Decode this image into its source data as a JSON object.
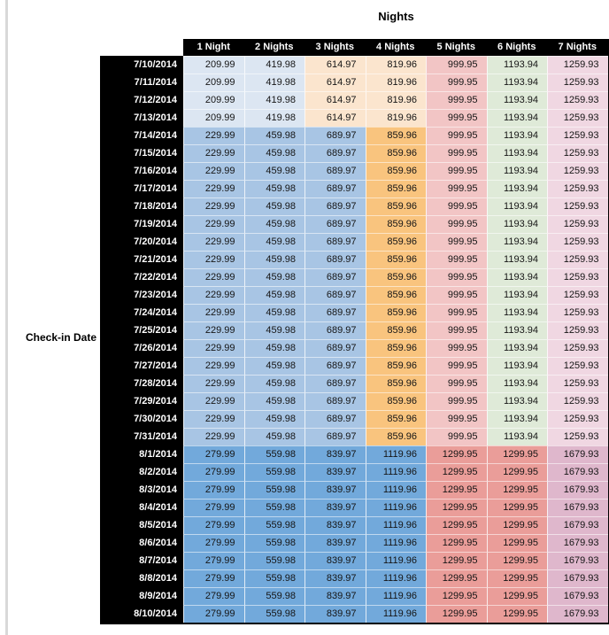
{
  "page": {
    "title": "Nights",
    "row_axis_label": "Check-in Date"
  },
  "palette": {
    "pale_blue": "#DCE6F2",
    "medium_blue": "#A8C5E4",
    "dark_blue": "#72A9DB",
    "pale_tan": "#FBE5CE",
    "orange": "#F9C47E",
    "rose": "#F2C5C5",
    "pale_green": "#DFEAD8",
    "pale_pink": "#F0D7E2",
    "salmon": "#EA9D99",
    "mauve": "#DFB7CC",
    "header_bg": "#000000",
    "header_text": "#FFFFFF",
    "gutter_gray": "#D9D9D9"
  },
  "chart_data": {
    "type": "table",
    "title": "Nights",
    "row_axis_label": "Check-in Date",
    "columns": [
      "1 Night",
      "2 Nights",
      "3 Nights",
      "4 Nights",
      "5 Nights",
      "6 Nights",
      "7 Nights"
    ],
    "band_colors": {
      "early": [
        "#DCE6F2",
        "#DCE6F2",
        "#FBE5CE",
        "#FBE5CE",
        "#F2C5C5",
        "#DFEAD8",
        "#F0D7E2"
      ],
      "mid": [
        "#A8C5E4",
        "#A8C5E4",
        "#A8C5E4",
        "#F9C47E",
        "#F2C5C5",
        "#DFEAD8",
        "#F0D7E2"
      ],
      "peak": [
        "#72A9DB",
        "#72A9DB",
        "#72A9DB",
        "#72A9DB",
        "#EA9D99",
        "#EA9D99",
        "#DFB7CC"
      ]
    },
    "rows": [
      {
        "date": "7/10/2014",
        "band": "early",
        "values": [
          209.99,
          419.98,
          614.97,
          819.96,
          999.95,
          1193.94,
          1259.93
        ]
      },
      {
        "date": "7/11/2014",
        "band": "early",
        "values": [
          209.99,
          419.98,
          614.97,
          819.96,
          999.95,
          1193.94,
          1259.93
        ]
      },
      {
        "date": "7/12/2014",
        "band": "early",
        "values": [
          209.99,
          419.98,
          614.97,
          819.96,
          999.95,
          1193.94,
          1259.93
        ]
      },
      {
        "date": "7/13/2014",
        "band": "early",
        "values": [
          209.99,
          419.98,
          614.97,
          819.96,
          999.95,
          1193.94,
          1259.93
        ]
      },
      {
        "date": "7/14/2014",
        "band": "mid",
        "values": [
          229.99,
          459.98,
          689.97,
          859.96,
          999.95,
          1193.94,
          1259.93
        ]
      },
      {
        "date": "7/15/2014",
        "band": "mid",
        "values": [
          229.99,
          459.98,
          689.97,
          859.96,
          999.95,
          1193.94,
          1259.93
        ]
      },
      {
        "date": "7/16/2014",
        "band": "mid",
        "values": [
          229.99,
          459.98,
          689.97,
          859.96,
          999.95,
          1193.94,
          1259.93
        ]
      },
      {
        "date": "7/17/2014",
        "band": "mid",
        "values": [
          229.99,
          459.98,
          689.97,
          859.96,
          999.95,
          1193.94,
          1259.93
        ]
      },
      {
        "date": "7/18/2014",
        "band": "mid",
        "values": [
          229.99,
          459.98,
          689.97,
          859.96,
          999.95,
          1193.94,
          1259.93
        ]
      },
      {
        "date": "7/19/2014",
        "band": "mid",
        "values": [
          229.99,
          459.98,
          689.97,
          859.96,
          999.95,
          1193.94,
          1259.93
        ]
      },
      {
        "date": "7/20/2014",
        "band": "mid",
        "values": [
          229.99,
          459.98,
          689.97,
          859.96,
          999.95,
          1193.94,
          1259.93
        ]
      },
      {
        "date": "7/21/2014",
        "band": "mid",
        "values": [
          229.99,
          459.98,
          689.97,
          859.96,
          999.95,
          1193.94,
          1259.93
        ]
      },
      {
        "date": "7/22/2014",
        "band": "mid",
        "values": [
          229.99,
          459.98,
          689.97,
          859.96,
          999.95,
          1193.94,
          1259.93
        ]
      },
      {
        "date": "7/23/2014",
        "band": "mid",
        "values": [
          229.99,
          459.98,
          689.97,
          859.96,
          999.95,
          1193.94,
          1259.93
        ]
      },
      {
        "date": "7/24/2014",
        "band": "mid",
        "values": [
          229.99,
          459.98,
          689.97,
          859.96,
          999.95,
          1193.94,
          1259.93
        ]
      },
      {
        "date": "7/25/2014",
        "band": "mid",
        "values": [
          229.99,
          459.98,
          689.97,
          859.96,
          999.95,
          1193.94,
          1259.93
        ]
      },
      {
        "date": "7/26/2014",
        "band": "mid",
        "values": [
          229.99,
          459.98,
          689.97,
          859.96,
          999.95,
          1193.94,
          1259.93
        ]
      },
      {
        "date": "7/27/2014",
        "band": "mid",
        "values": [
          229.99,
          459.98,
          689.97,
          859.96,
          999.95,
          1193.94,
          1259.93
        ]
      },
      {
        "date": "7/28/2014",
        "band": "mid",
        "values": [
          229.99,
          459.98,
          689.97,
          859.96,
          999.95,
          1193.94,
          1259.93
        ]
      },
      {
        "date": "7/29/2014",
        "band": "mid",
        "values": [
          229.99,
          459.98,
          689.97,
          859.96,
          999.95,
          1193.94,
          1259.93
        ]
      },
      {
        "date": "7/30/2014",
        "band": "mid",
        "values": [
          229.99,
          459.98,
          689.97,
          859.96,
          999.95,
          1193.94,
          1259.93
        ]
      },
      {
        "date": "7/31/2014",
        "band": "mid",
        "values": [
          229.99,
          459.98,
          689.97,
          859.96,
          999.95,
          1193.94,
          1259.93
        ]
      },
      {
        "date": "8/1/2014",
        "band": "peak",
        "values": [
          279.99,
          559.98,
          839.97,
          1119.96,
          1299.95,
          1299.95,
          1679.93
        ]
      },
      {
        "date": "8/2/2014",
        "band": "peak",
        "values": [
          279.99,
          559.98,
          839.97,
          1119.96,
          1299.95,
          1299.95,
          1679.93
        ]
      },
      {
        "date": "8/3/2014",
        "band": "peak",
        "values": [
          279.99,
          559.98,
          839.97,
          1119.96,
          1299.95,
          1299.95,
          1679.93
        ]
      },
      {
        "date": "8/4/2014",
        "band": "peak",
        "values": [
          279.99,
          559.98,
          839.97,
          1119.96,
          1299.95,
          1299.95,
          1679.93
        ]
      },
      {
        "date": "8/5/2014",
        "band": "peak",
        "values": [
          279.99,
          559.98,
          839.97,
          1119.96,
          1299.95,
          1299.95,
          1679.93
        ]
      },
      {
        "date": "8/6/2014",
        "band": "peak",
        "values": [
          279.99,
          559.98,
          839.97,
          1119.96,
          1299.95,
          1299.95,
          1679.93
        ]
      },
      {
        "date": "8/7/2014",
        "band": "peak",
        "values": [
          279.99,
          559.98,
          839.97,
          1119.96,
          1299.95,
          1299.95,
          1679.93
        ]
      },
      {
        "date": "8/8/2014",
        "band": "peak",
        "values": [
          279.99,
          559.98,
          839.97,
          1119.96,
          1299.95,
          1299.95,
          1679.93
        ]
      },
      {
        "date": "8/9/2014",
        "band": "peak",
        "values": [
          279.99,
          559.98,
          839.97,
          1119.96,
          1299.95,
          1299.95,
          1679.93
        ]
      },
      {
        "date": "8/10/2014",
        "band": "peak",
        "values": [
          279.99,
          559.98,
          839.97,
          1119.96,
          1299.95,
          1299.95,
          1679.93
        ]
      }
    ]
  }
}
